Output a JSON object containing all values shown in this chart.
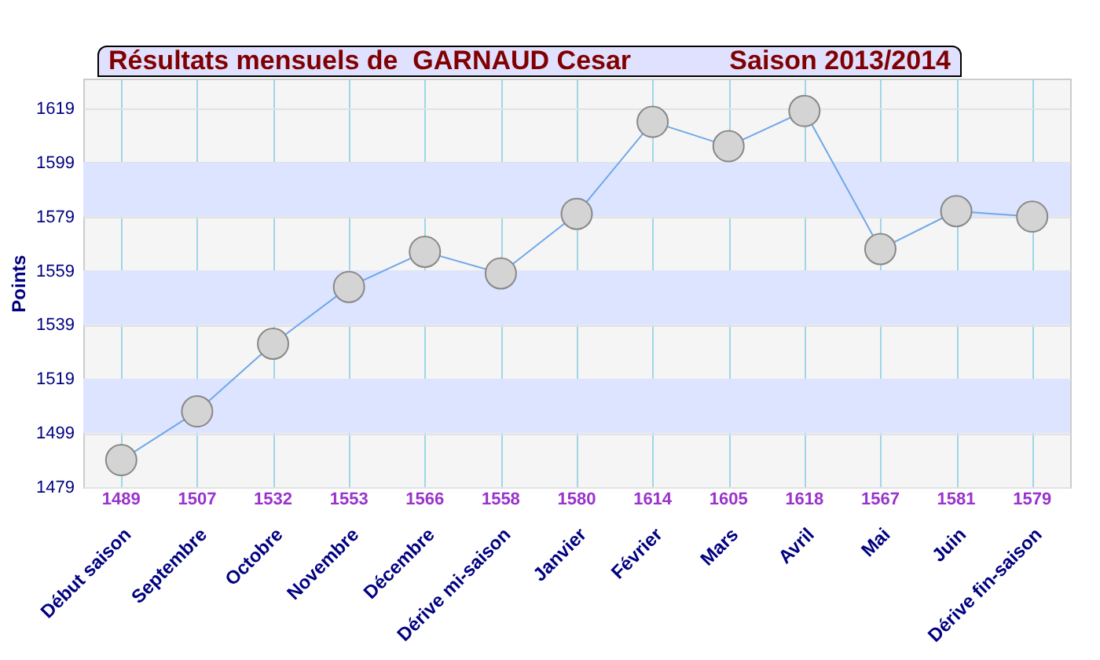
{
  "chart_data": {
    "type": "line",
    "title": "Résultats mensuels de  GARNAUD Cesar",
    "subtitle": "Saison 2013/2014",
    "ylabel": "Points",
    "categories": [
      "Début saison",
      "Septembre",
      "Octobre",
      "Novembre",
      "Décembre",
      "Dérive mi-saison",
      "Janvier",
      "Février",
      "Mars",
      "Avril",
      "Mai",
      "Juin",
      "Dérive fin-saison"
    ],
    "series": [
      {
        "color": "#6fa8e8",
        "values": [
          1489,
          1507,
          1532,
          1553,
          1566,
          1558,
          1580,
          1614,
          1605,
          1618,
          1567,
          1581,
          1579
        ]
      }
    ],
    "ylim": [
      1479,
      1630
    ],
    "yticks": [
      1479,
      1499,
      1519,
      1539,
      1559,
      1579,
      1599,
      1619
    ],
    "bands": [
      {
        "axis": "y",
        "from": 1499,
        "to": 1519,
        "color": "#dde4ff"
      },
      {
        "axis": "y",
        "from": 1539,
        "to": 1559,
        "color": "#dde4ff"
      },
      {
        "axis": "y",
        "from": 1579,
        "to": 1599,
        "color": "#dde4ff"
      }
    ],
    "grid": true,
    "marker": "circle",
    "data_labels": true
  }
}
